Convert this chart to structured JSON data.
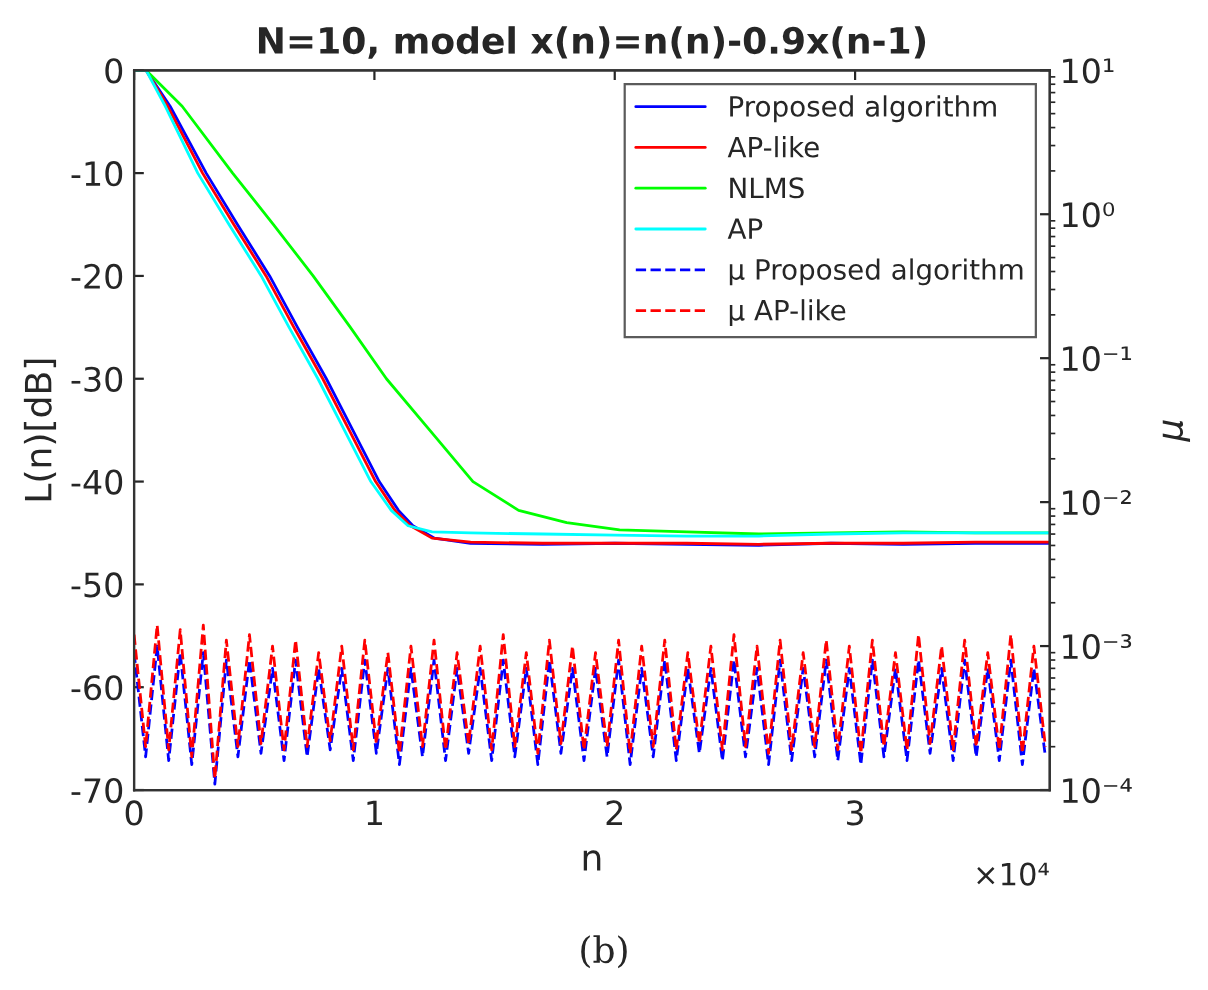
{
  "chart_data": {
    "type": "line",
    "title": "N=10, model x(n)=n(n)-0.9x(n-1)",
    "xlabel": "n",
    "ylabel": "L(n)[dB]",
    "y2label": "μ",
    "annotations": [
      "×10⁴",
      "(b)"
    ],
    "xlim": [
      0,
      3.81
    ],
    "xticks": [
      0,
      1,
      2,
      3
    ],
    "ylim": [
      -70,
      0
    ],
    "yticks": [
      -70,
      -60,
      -50,
      -40,
      -30,
      -20,
      -10,
      0
    ],
    "y2lim": [
      0.0001,
      10
    ],
    "y2ticks": [
      {
        "value": 0.0001,
        "label": "10⁻⁴"
      },
      {
        "value": 0.001,
        "label": "10⁻³"
      },
      {
        "value": 0.01,
        "label": "10⁻²"
      },
      {
        "value": 0.1,
        "label": "10⁻¹"
      },
      {
        "value": 1,
        "label": "10⁰"
      },
      {
        "value": 10,
        "label": "10¹"
      }
    ],
    "log": "y2",
    "grid": false,
    "legend": "top right",
    "series": [
      {
        "name": "Proposed algorithm",
        "color": "#0000ff",
        "line_style": "solid",
        "x": [
          0,
          0.05,
          0.15,
          0.3,
          0.43,
          0.564,
          0.68,
          0.8,
          0.91,
          1.02,
          1.1,
          1.16,
          1.25,
          1.4,
          1.7,
          2.0,
          2.3,
          2.6,
          2.9,
          3.2,
          3.5,
          3.81
        ],
        "values": [
          0,
          0,
          -3.5,
          -10,
          -15,
          -20,
          -25,
          -30,
          -35,
          -40,
          -42.8,
          -44.3,
          -45.5,
          -46,
          -46.1,
          -46,
          -46.1,
          -46.2,
          -46,
          -46.1,
          -46,
          -46
        ]
      },
      {
        "name": "AP-like",
        "color": "#ff0000",
        "line_style": "solid",
        "x": [
          0,
          0.05,
          0.14,
          0.285,
          0.415,
          0.549,
          0.665,
          0.785,
          0.895,
          1.005,
          1.085,
          1.15,
          1.24,
          1.4,
          1.7,
          2.0,
          2.3,
          2.6,
          2.9,
          3.2,
          3.5,
          3.81
        ],
        "values": [
          0,
          0,
          -3.5,
          -10,
          -15,
          -20,
          -25,
          -30,
          -35,
          -40,
          -42.8,
          -44.3,
          -45.5,
          -45.9,
          -46,
          -46,
          -46,
          -46.1,
          -46,
          -46,
          -45.9,
          -45.9
        ]
      },
      {
        "name": "NLMS",
        "color": "#00ff00",
        "line_style": "solid",
        "x": [
          0,
          0.05,
          0.2,
          0.41,
          0.58,
          0.745,
          0.9,
          1.05,
          1.23,
          1.41,
          1.6,
          1.8,
          2.02,
          2.3,
          2.6,
          2.9,
          3.2,
          3.5,
          3.81
        ],
        "values": [
          0,
          0,
          -3.5,
          -10,
          -15,
          -20,
          -25,
          -30,
          -35,
          -40,
          -42.8,
          -44,
          -44.7,
          -44.9,
          -45.1,
          -45,
          -44.9,
          -45,
          -45
        ]
      },
      {
        "name": "AP",
        "color": "#00ffff",
        "line_style": "solid",
        "x": [
          0,
          0.05,
          0.13,
          0.265,
          0.395,
          0.529,
          0.645,
          0.765,
          0.875,
          0.985,
          1.07,
          1.14,
          1.24,
          1.4,
          1.7,
          2.0,
          2.3,
          2.6,
          2.9,
          3.2,
          3.5,
          3.81
        ],
        "values": [
          0,
          0,
          -3.5,
          -10,
          -15,
          -20,
          -25,
          -30,
          -35,
          -40,
          -42.8,
          -44.3,
          -44.9,
          -45,
          -45.1,
          -45.2,
          -45.3,
          -45.3,
          -45.1,
          -45,
          -45,
          -45
        ]
      },
      {
        "name": "μ Proposed algorithm",
        "color": "#0000ff",
        "line_style": "dashed",
        "axis": "y2",
        "x": [
          0,
          0.048,
          0.096,
          0.144,
          0.192,
          0.24,
          0.288,
          0.336,
          0.384,
          0.432,
          0.48,
          0.528,
          0.576,
          0.624,
          0.672,
          0.72,
          0.768,
          0.816,
          0.864,
          0.912,
          0.96,
          1.008,
          1.056,
          1.104,
          1.152,
          1.2,
          1.248,
          1.296,
          1.344,
          1.392,
          1.44,
          1.488,
          1.536,
          1.584,
          1.632,
          1.68,
          1.728,
          1.776,
          1.824,
          1.872,
          1.92,
          1.968,
          2.016,
          2.064,
          2.112,
          2.16,
          2.208,
          2.256,
          2.304,
          2.352,
          2.4,
          2.448,
          2.496,
          2.544,
          2.592,
          2.64,
          2.688,
          2.736,
          2.784,
          2.832,
          2.88,
          2.928,
          2.976,
          3.024,
          3.072,
          3.12,
          3.168,
          3.216,
          3.264,
          3.312,
          3.36,
          3.408,
          3.456,
          3.504,
          3.552,
          3.6,
          3.648,
          3.696,
          3.744,
          3.792
        ],
        "values": [
          0.0009,
          0.00017,
          0.001,
          0.00016,
          0.0009,
          0.00015,
          0.0009,
          0.00011,
          0.0008,
          0.00017,
          0.0008,
          0.00018,
          0.0007,
          0.00016,
          0.0008,
          0.00017,
          0.0007,
          0.00019,
          0.0007,
          0.00016,
          0.0008,
          0.00018,
          0.0007,
          0.00015,
          0.0007,
          0.00017,
          0.0008,
          0.00016,
          0.0007,
          0.00018,
          0.0007,
          0.00016,
          0.0008,
          0.00017,
          0.0007,
          0.00015,
          0.0008,
          0.00018,
          0.0007,
          0.00016,
          0.0007,
          0.00017,
          0.0008,
          0.00015,
          0.0007,
          0.00017,
          0.0008,
          0.00016,
          0.0007,
          0.00018,
          0.0007,
          0.00016,
          0.0008,
          0.00017,
          0.0007,
          0.00015,
          0.0008,
          0.00016,
          0.0007,
          0.00017,
          0.0008,
          0.00016,
          0.0007,
          0.00015,
          0.0008,
          0.00017,
          0.0007,
          0.00016,
          0.0008,
          0.00018,
          0.0007,
          0.00016,
          0.0008,
          0.00017,
          0.0007,
          0.00016,
          0.0008,
          0.00015,
          0.0007,
          0.00017
        ]
      },
      {
        "name": "μ AP-like",
        "color": "#ff0000",
        "line_style": "dashed",
        "axis": "y2",
        "x": [
          0,
          0.048,
          0.096,
          0.144,
          0.192,
          0.24,
          0.288,
          0.336,
          0.384,
          0.432,
          0.48,
          0.528,
          0.576,
          0.624,
          0.672,
          0.72,
          0.768,
          0.816,
          0.864,
          0.912,
          0.96,
          1.008,
          1.056,
          1.104,
          1.152,
          1.2,
          1.248,
          1.296,
          1.344,
          1.392,
          1.44,
          1.488,
          1.536,
          1.584,
          1.632,
          1.68,
          1.728,
          1.776,
          1.824,
          1.872,
          1.92,
          1.968,
          2.016,
          2.064,
          2.112,
          2.16,
          2.208,
          2.256,
          2.304,
          2.352,
          2.4,
          2.448,
          2.496,
          2.544,
          2.592,
          2.64,
          2.688,
          2.736,
          2.784,
          2.832,
          2.88,
          2.928,
          2.976,
          3.024,
          3.072,
          3.12,
          3.168,
          3.216,
          3.264,
          3.312,
          3.36,
          3.408,
          3.456,
          3.504,
          3.552,
          3.6,
          3.648,
          3.696,
          3.744,
          3.792
        ],
        "values": [
          0.0012,
          0.0002,
          0.0014,
          0.00019,
          0.0013,
          0.00017,
          0.0014,
          0.00012,
          0.0011,
          0.0002,
          0.0012,
          0.00021,
          0.001,
          0.00019,
          0.0011,
          0.0002,
          0.0009,
          0.00022,
          0.001,
          0.00019,
          0.0011,
          0.00021,
          0.0009,
          0.00018,
          0.001,
          0.0002,
          0.0011,
          0.00019,
          0.0009,
          0.00021,
          0.001,
          0.00019,
          0.0012,
          0.0002,
          0.0009,
          0.00018,
          0.0011,
          0.00021,
          0.001,
          0.00019,
          0.0009,
          0.0002,
          0.0011,
          0.00018,
          0.001,
          0.0002,
          0.0011,
          0.00019,
          0.0009,
          0.00021,
          0.001,
          0.00019,
          0.0012,
          0.0002,
          0.001,
          0.00018,
          0.0011,
          0.00019,
          0.0009,
          0.0002,
          0.0011,
          0.00019,
          0.001,
          0.00018,
          0.0011,
          0.0002,
          0.0009,
          0.00019,
          0.0012,
          0.00021,
          0.001,
          0.00019,
          0.0011,
          0.0002,
          0.0009,
          0.00019,
          0.0012,
          0.00018,
          0.001,
          0.0002
        ]
      }
    ]
  }
}
